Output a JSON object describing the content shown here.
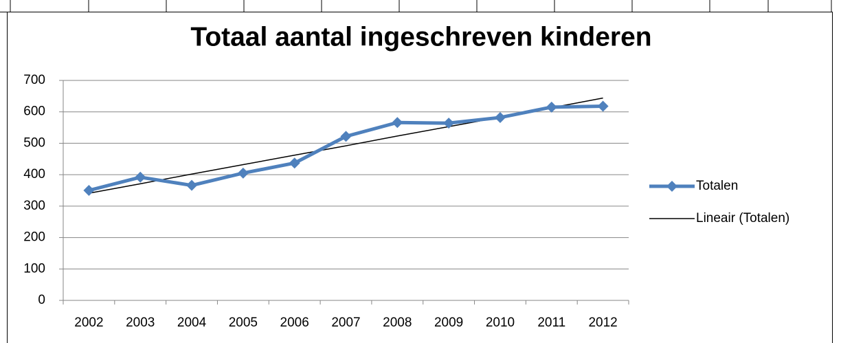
{
  "chart_data": {
    "type": "line",
    "title": "Totaal aantal ingeschreven kinderen",
    "categories": [
      "2002",
      "2003",
      "2004",
      "2005",
      "2006",
      "2007",
      "2008",
      "2009",
      "2010",
      "2011",
      "2012"
    ],
    "series": [
      {
        "name": "Totalen",
        "color": "#4f81bd",
        "marker": "diamond",
        "values": [
          350,
          392,
          366,
          405,
          437,
          522,
          566,
          564,
          582,
          615,
          618
        ]
      },
      {
        "name": "Lineair (Totalen)",
        "color": "#000000",
        "values": [
          341,
          371,
          402,
          432,
          462,
          492,
          523,
          553,
          583,
          613,
          644
        ]
      }
    ],
    "ylim": [
      0,
      700
    ],
    "yticks": [
      0,
      100,
      200,
      300,
      400,
      500,
      600,
      700
    ],
    "grid": true,
    "legend": "right"
  }
}
